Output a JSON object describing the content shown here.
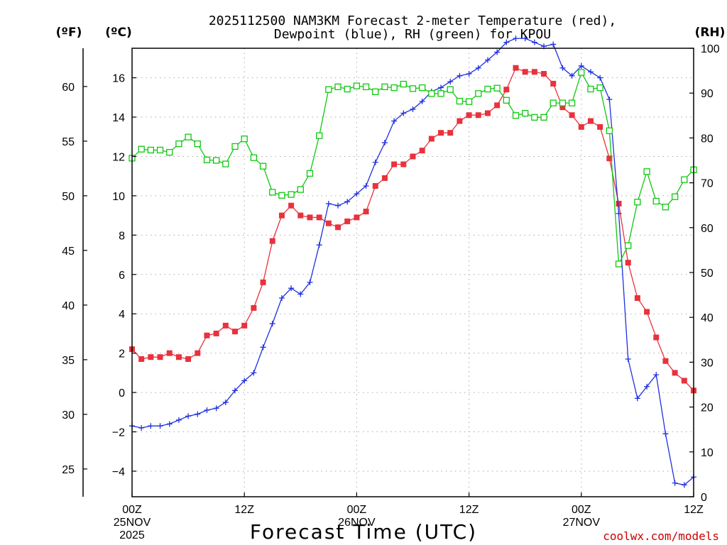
{
  "chart_data": {
    "type": "line",
    "title_line1": "2025112500 NAM3KM Forecast 2-meter Temperature (red),",
    "title_line2": "Dewpoint (blue), RH (green) for KPOU",
    "xlabel": "Forecast Time (UTC)",
    "credit": "coolwx.com/models",
    "unit_left_f": "(ºF)",
    "unit_left_c": "(ºC)",
    "unit_right": "(RH)",
    "x_range_hours": [
      0,
      60
    ],
    "x_ticks": [
      {
        "hour": 0,
        "label": "00Z",
        "date": "25NOV",
        "year": "2025"
      },
      {
        "hour": 12,
        "label": "12Z"
      },
      {
        "hour": 24,
        "label": "00Z",
        "date": "26NOV"
      },
      {
        "hour": 36,
        "label": "12Z"
      },
      {
        "hour": 48,
        "label": "00Z",
        "date": "27NOV"
      },
      {
        "hour": 60,
        "label": "12Z"
      }
    ],
    "y_c_range": [
      -5.3,
      17.5
    ],
    "y_c_ticks": [
      -4,
      -2,
      0,
      2,
      4,
      6,
      8,
      10,
      12,
      14,
      16
    ],
    "y_c_tick_labels": [
      "−4",
      "−2",
      "0",
      "2",
      "4",
      "6",
      "8",
      "10",
      "12",
      "14",
      "16"
    ],
    "y_f_ticks": [
      25,
      30,
      35,
      40,
      45,
      50,
      55,
      60
    ],
    "y_rh_range": [
      0,
      100
    ],
    "y_rh_ticks": [
      0,
      10,
      20,
      30,
      40,
      50,
      60,
      70,
      80,
      90,
      100
    ],
    "series": [
      {
        "name": "Temperature",
        "unit": "C",
        "color": "#e8323c",
        "marker": "filled-square",
        "values": [
          2.2,
          1.7,
          1.8,
          1.8,
          2.0,
          1.8,
          1.7,
          2.0,
          2.9,
          3.0,
          3.4,
          3.1,
          3.4,
          4.3,
          5.6,
          7.7,
          9.0,
          9.5,
          9.0,
          8.9,
          8.9,
          8.6,
          8.4,
          8.7,
          8.9,
          9.2,
          10.5,
          10.9,
          11.6,
          11.6,
          12.0,
          12.3,
          12.9,
          13.2,
          13.2,
          13.8,
          14.1,
          14.1,
          14.2,
          14.6,
          15.4,
          16.5,
          16.3,
          16.3,
          16.2,
          15.7,
          14.5,
          14.1,
          13.5,
          13.8,
          13.5,
          11.9,
          9.6,
          6.6,
          4.8,
          4.1,
          2.8,
          1.6,
          1.0,
          0.6,
          0.1
        ]
      },
      {
        "name": "Dewpoint",
        "unit": "C",
        "color": "#2030e0",
        "marker": "plus",
        "values": [
          -1.7,
          -1.8,
          -1.7,
          -1.7,
          -1.6,
          -1.4,
          -1.2,
          -1.1,
          -0.9,
          -0.8,
          -0.5,
          0.1,
          0.6,
          1.0,
          2.3,
          3.5,
          4.8,
          5.3,
          5.0,
          5.6,
          7.5,
          9.6,
          9.5,
          9.7,
          10.1,
          10.5,
          11.7,
          12.7,
          13.8,
          14.2,
          14.4,
          14.8,
          15.3,
          15.5,
          15.8,
          16.1,
          16.2,
          16.5,
          16.9,
          17.3,
          17.8,
          18.0,
          18.0,
          17.8,
          17.6,
          17.7,
          16.5,
          16.1,
          16.6,
          16.3,
          16.0,
          14.9,
          9.1,
          1.7,
          -0.3,
          0.3,
          0.9,
          -2.1,
          -4.6,
          -4.7,
          -4.3
        ]
      },
      {
        "name": "RH",
        "unit": "%",
        "color": "#10c810",
        "marker": "open-square",
        "values": [
          75.5,
          77.5,
          77.3,
          77.3,
          76.8,
          78.7,
          80.2,
          78.7,
          75.1,
          75.0,
          74.2,
          78.1,
          79.8,
          75.6,
          73.7,
          67.9,
          67.2,
          67.4,
          68.5,
          72.1,
          80.5,
          90.8,
          91.4,
          90.9,
          91.6,
          91.4,
          90.3,
          91.4,
          91.2,
          92.0,
          91.0,
          91.2,
          89.9,
          89.9,
          90.8,
          88.2,
          88.1,
          89.9,
          90.9,
          91.1,
          88.4,
          85.0,
          85.5,
          84.6,
          84.6,
          87.8,
          87.8,
          87.8,
          94.6,
          90.9,
          91.2,
          81.6,
          51.9,
          56.0,
          65.7,
          72.5,
          65.9,
          64.6,
          66.9,
          70.7,
          72.9
        ]
      }
    ]
  }
}
